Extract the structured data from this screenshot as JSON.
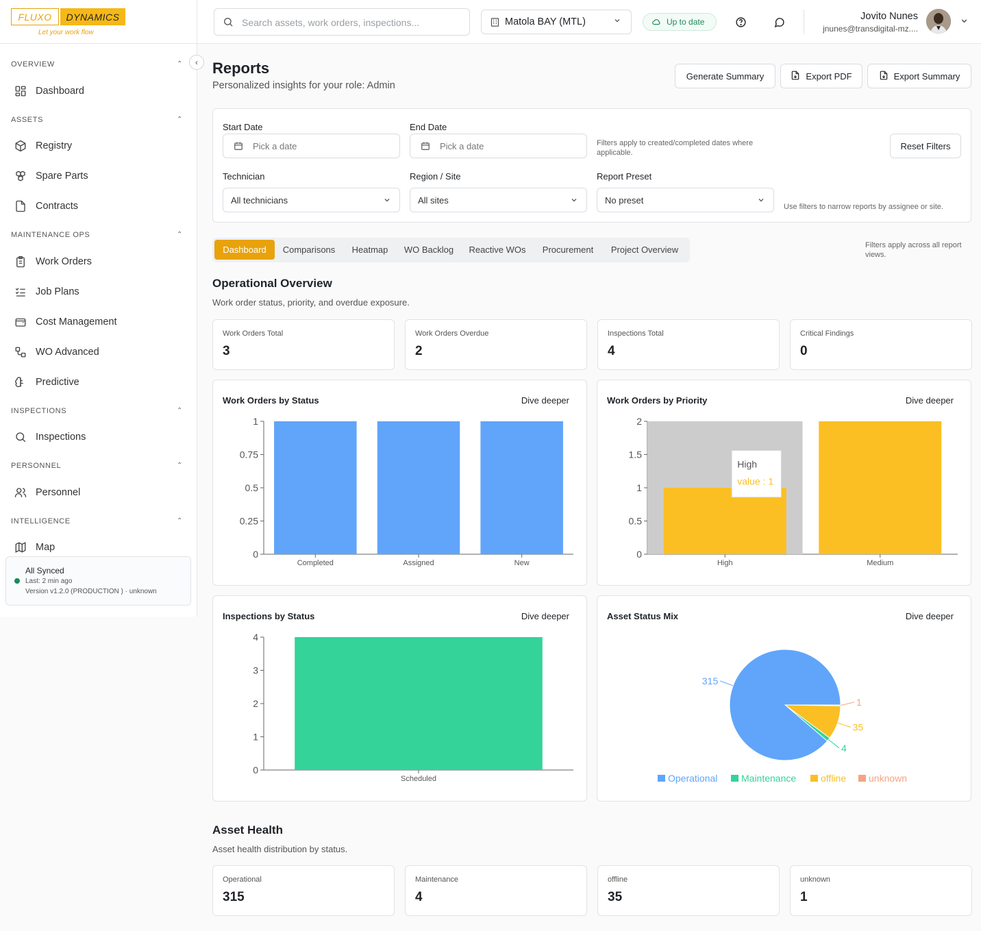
{
  "brand": {
    "left": "FLUXO",
    "right": "DYNAMICS",
    "tagline": "Let your work flow"
  },
  "sidebar": {
    "sections": [
      {
        "title": "OVERVIEW",
        "items": [
          {
            "label": "Dashboard",
            "icon": "dashboard-icon"
          }
        ]
      },
      {
        "title": "ASSETS",
        "items": [
          {
            "label": "Registry",
            "icon": "cube-icon"
          },
          {
            "label": "Spare Parts",
            "icon": "boxes-icon"
          },
          {
            "label": "Contracts",
            "icon": "file-icon"
          }
        ]
      },
      {
        "title": "MAINTENANCE OPS",
        "items": [
          {
            "label": "Work Orders",
            "icon": "clipboard-icon"
          },
          {
            "label": "Job Plans",
            "icon": "list-check-icon"
          },
          {
            "label": "Cost Management",
            "icon": "wallet-icon"
          },
          {
            "label": "WO Advanced",
            "icon": "workflow-icon"
          },
          {
            "label": "Predictive",
            "icon": "brain-icon"
          }
        ]
      },
      {
        "title": "INSPECTIONS",
        "items": [
          {
            "label": "Inspections",
            "icon": "search-icon"
          }
        ]
      },
      {
        "title": "PERSONNEL",
        "items": [
          {
            "label": "Personnel",
            "icon": "users-icon"
          }
        ]
      },
      {
        "title": "INTELLIGENCE",
        "items": [
          {
            "label": "Map",
            "icon": "map-icon"
          }
        ]
      }
    ],
    "sync": {
      "title": "All Synced",
      "last": "Last: 2 min ago",
      "version": "Version v1.2.0 (PRODUCTION ) · unknown"
    }
  },
  "topbar": {
    "search_placeholder": "Search assets, work orders, inspections...",
    "site": "Matola BAY (MTL)",
    "status": "Up to date",
    "user_name": "Jovito Nunes",
    "user_email": "jnunes@transdigital-mz...."
  },
  "page": {
    "title": "Reports",
    "subtitle": "Personalized insights for your role: Admin",
    "buttons": {
      "generate": "Generate Summary",
      "export_pdf": "Export PDF",
      "export_summary": "Export Summary"
    }
  },
  "filters": {
    "start_label": "Start Date",
    "start_placeholder": "Pick a date",
    "end_label": "End Date",
    "end_placeholder": "Pick a date",
    "date_note": "Filters apply to created/completed dates where applicable.",
    "reset": "Reset Filters",
    "technician_label": "Technician",
    "technician_value": "All technicians",
    "region_label": "Region / Site",
    "region_value": "All sites",
    "preset_label": "Report Preset",
    "preset_value": "No preset",
    "scope_note": "Use filters to narrow reports by assignee or site."
  },
  "tabs": {
    "items": [
      "Dashboard",
      "Comparisons",
      "Heatmap",
      "WO Backlog",
      "Reactive WOs",
      "Procurement",
      "Project Overview"
    ],
    "active": 0,
    "note": "Filters apply across all report views."
  },
  "operational": {
    "title": "Operational Overview",
    "subtitle": "Work order status, priority, and overdue exposure.",
    "kpis": [
      {
        "label": "Work Orders Total",
        "value": "3"
      },
      {
        "label": "Work Orders Overdue",
        "value": "2"
      },
      {
        "label": "Inspections Total",
        "value": "4"
      },
      {
        "label": "Critical Findings",
        "value": "0"
      }
    ]
  },
  "dive_deeper": "Dive deeper",
  "chart_data": [
    {
      "type": "bar",
      "title": "Work Orders by Status",
      "categories": [
        "Completed",
        "Assigned",
        "New"
      ],
      "values": [
        1,
        1,
        1
      ],
      "ylim": [
        0,
        1
      ],
      "yticks": [
        "0",
        "0.25",
        "0.5",
        "0.75",
        "1"
      ],
      "color": "#60a5fa"
    },
    {
      "type": "bar",
      "title": "Work Orders by Priority",
      "categories": [
        "High",
        "Medium"
      ],
      "values": [
        1,
        2
      ],
      "ylim": [
        0,
        2
      ],
      "yticks": [
        "0",
        "0.5",
        "1",
        "1.5",
        "2"
      ],
      "color": "#fbbf24",
      "tooltip": {
        "title": "High",
        "text": "value : 1"
      }
    },
    {
      "type": "bar",
      "title": "Inspections by Status",
      "categories": [
        "Scheduled"
      ],
      "values": [
        4
      ],
      "ylim": [
        0,
        4
      ],
      "yticks": [
        "0",
        "1",
        "2",
        "3",
        "4"
      ],
      "color": "#34d399"
    },
    {
      "type": "pie",
      "title": "Asset Status Mix",
      "slices": [
        {
          "label": "Operational",
          "value": 315,
          "color": "#60a5fa"
        },
        {
          "label": "Maintenance",
          "value": 4,
          "color": "#34d399"
        },
        {
          "label": "offline",
          "value": 35,
          "color": "#fbbf24"
        },
        {
          "label": "unknown",
          "value": 1,
          "color": "#f4a582"
        }
      ]
    }
  ],
  "asset_health": {
    "title": "Asset Health",
    "subtitle": "Asset health distribution by status.",
    "kpis": [
      {
        "label": "Operational",
        "value": "315"
      },
      {
        "label": "Maintenance",
        "value": "4"
      },
      {
        "label": "offline",
        "value": "35"
      },
      {
        "label": "unknown",
        "value": "1"
      }
    ]
  }
}
